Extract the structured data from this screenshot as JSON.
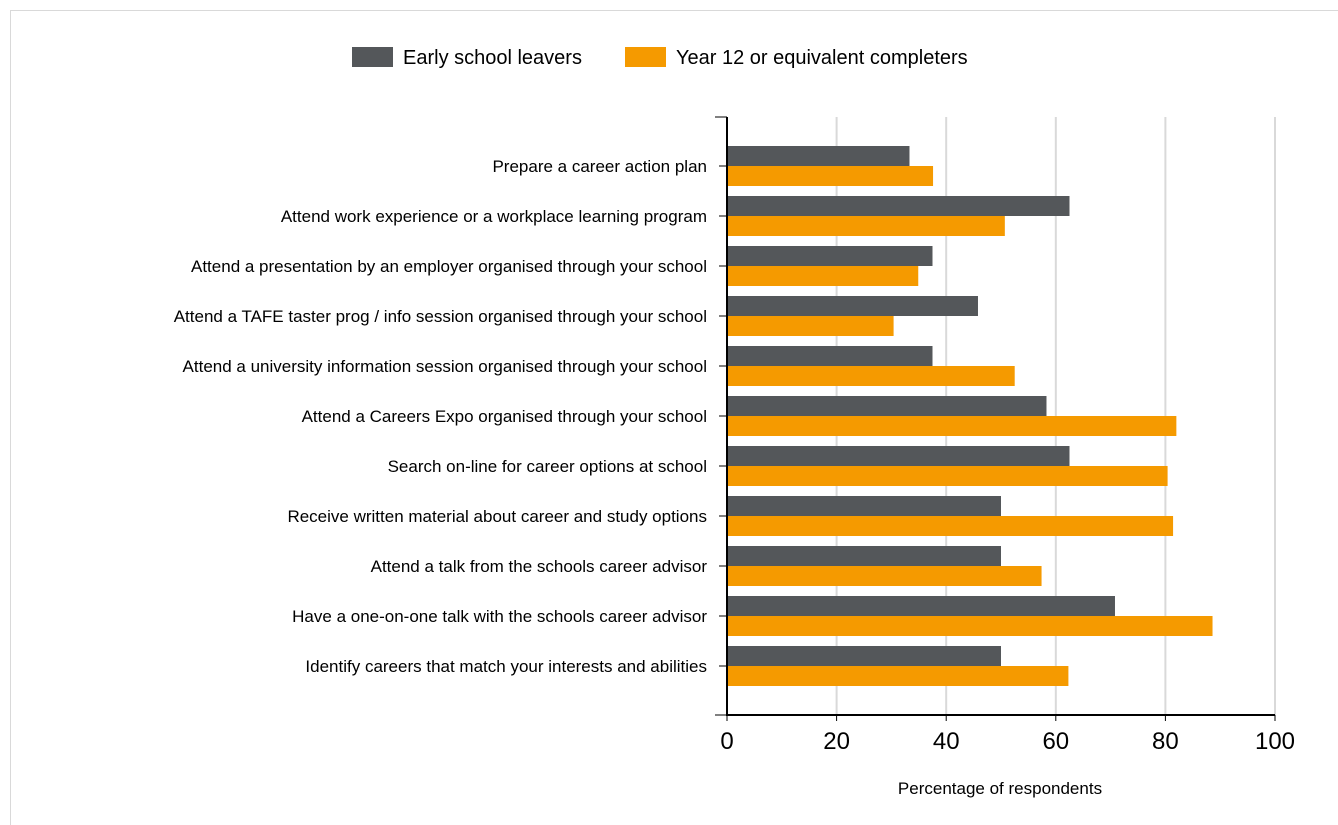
{
  "chart_data": {
    "type": "bar",
    "orientation": "horizontal",
    "categories": [
      "Prepare a career action plan",
      "Attend work experience or a workplace learning program",
      "Attend a presentation by an employer organised through your school",
      "Attend a TAFE taster prog / info session organised through your school",
      "Attend a university information session organised through your school",
      "Attend a Careers Expo organised through your school",
      "Search on-line for career options at school",
      "Receive written material about career and study options",
      "Attend a talk from the schools career advisor",
      "Have a one-on-one talk with the schools career advisor",
      "Identify careers that match your interests and abilities"
    ],
    "series": [
      {
        "name": "Early school leavers",
        "color": "#54575a",
        "values": [
          33.3,
          62.5,
          37.5,
          45.8,
          37.5,
          58.3,
          62.5,
          50.0,
          50.0,
          70.8,
          50.0
        ]
      },
      {
        "name": "Year 12 or equivalent completers",
        "color": "#f59a00",
        "values": [
          37.6,
          50.7,
          34.9,
          30.4,
          52.5,
          82.0,
          80.4,
          81.4,
          57.4,
          88.6,
          62.3
        ]
      }
    ],
    "xlabel": "Percentage of respondents",
    "ylabel": "",
    "xlim": [
      0,
      100
    ],
    "xticks": [
      "0",
      "20",
      "40",
      "60",
      "80",
      "100"
    ],
    "grid": true,
    "legend_position": "top"
  }
}
